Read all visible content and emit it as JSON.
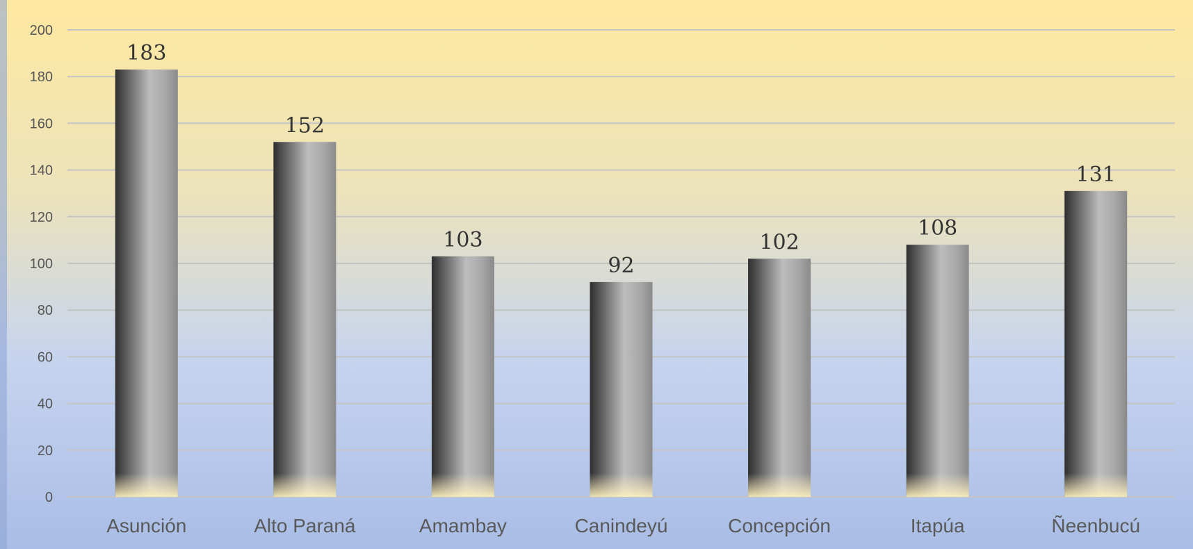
{
  "chart_data": {
    "type": "bar",
    "categories": [
      "Asunción",
      "Alto Paraná",
      "Amambay",
      "Canindeyú",
      "Concepción",
      "Itapúa",
      "Ñeenbucú"
    ],
    "values": [
      183,
      152,
      103,
      92,
      102,
      108,
      131
    ],
    "ylim": [
      0,
      200
    ],
    "yticks": [
      0,
      20,
      40,
      60,
      80,
      100,
      120,
      140,
      160,
      180,
      200
    ],
    "grid": true,
    "legend": "none",
    "data_labels": true
  },
  "colors": {
    "background_top": "#ffe9a0",
    "background_bottom": "#a9bde6",
    "gridline": "#c4c4c4",
    "bar_dark": "#3a3a3a",
    "bar_light": "#bdbdbd",
    "bar_glow": "#fff3c0"
  }
}
